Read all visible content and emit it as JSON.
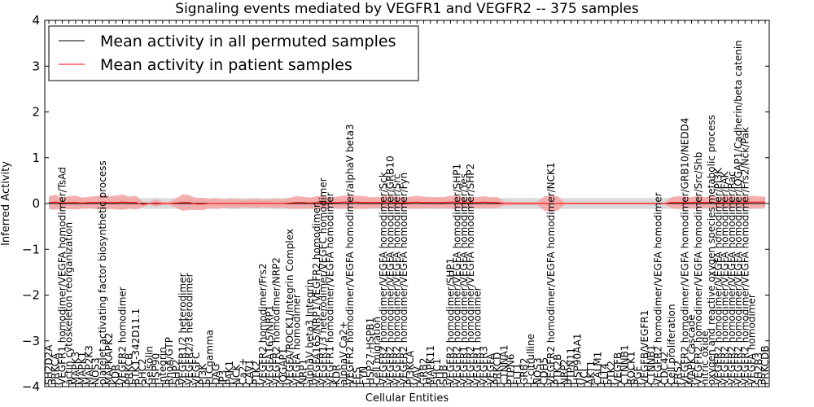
{
  "chart_data": {
    "type": "line",
    "title": "Signaling events mediated by VEGFR1 and VEGFR2 -- 375 samples",
    "xlabel": "Cellular Entities",
    "ylabel": "Inferred Activity",
    "ylim": [
      -4,
      4
    ],
    "yticks": [
      -4,
      -3,
      -2,
      -1,
      0,
      1,
      2,
      3,
      4
    ],
    "grid": false,
    "legend_position": "top-left",
    "categories": [
      "SH2D2A",
      "PRKCA",
      "VEGFR1 homodimer/VEGFA homodimer/TsAd",
      "actin cytoskeleton reorganization",
      "MAPK3",
      "MAPK1",
      "MAP2K3",
      "NOS3",
      "platelet activating factor biosynthetic process",
      "MAPKAPK2",
      "KDR",
      "VEGFR2 homodimer",
      "PRKCB",
      "BTK1-342D11.1",
      "SHC2",
      "Gelsolin",
      "HSP90",
      "Integrin",
      "RhoA/GTP",
      "SHP2",
      "VEGFR1/2 heterodimer",
      "VEGFR2/3 heterodimer",
      "VEGFC",
      "PI3K",
      "PLCgamma",
      "DAG",
      "IP3",
      "PAK1",
      "NCK",
      "Ca2+",
      "CAV1",
      "PTK2",
      "VEGFR2 homodimer/Frs2",
      "VEGFA165/NRP1",
      "VEGFR2 homodimer/NRP2",
      "IQGAP1",
      "VEGFA/ROCK1/Integrin Complex",
      "VEGFA homodimer",
      "NRP1",
      "alphaV beta3 Integrin",
      "VEGFA165/NRP1/VEGFR2 homodimer",
      "VEGFR1/3 heterodimer/VEGFC homodimer",
      "VEGFR1 homodimer/VEGFA homodimer",
      "KDR",
      "alphaV Ca2+",
      "VEGFR2 homodimer/VEGFA homodimer/alphaV beta3",
      "FES",
      "FYN",
      "HSP27-HSPB1",
      "Cell migration",
      "VEGFR2 homodimer/VEGFA homodimer/Sck",
      "VEGFR2 homodimer/VEGFA homodimer/GRB10",
      "VEGFR2 homodimer/VEGFA homodimer/Src",
      "VEGFR2 homodimer/VEGFA homodimer/Fyn",
      "PI3KCA",
      "VAV",
      "GRB2",
      "MAPK11",
      "SHC1",
      "SHB",
      "VEGFR2 homodimer/SHP1",
      "VEGFR2 homodimer/VEGFA homodimer/SHP1",
      "VEGFR1 homodimer/VEGFA homodimer/Yes",
      "VEGFR2 homodimer/VEGFA homodimer/SHP2",
      "VEGFR1 homodimer",
      "VEGFR3",
      "VEGFA",
      "PRKCD",
      "CTNNA1",
      "PTPN6",
      "FLT1",
      "GRB2",
      "L-citrulline",
      "NOS3",
      "CDH5",
      "VEGFR2 homodimer/VEGFA homodimer/NCK1",
      "PTK2B",
      "NRP2",
      "PTPN11",
      "HSP90AA1",
      "VCL",
      "AKT1",
      "CALM1",
      "FLT4",
      "PTK2",
      "VEGFB",
      "CTNNB1",
      "ROCK1",
      "PGF",
      "VEGFB/VEGFR1",
      "CTNNB1",
      "VEGFR2 homodimer/VEGFA homodimer",
      "CDC42",
      "Cell proliferation",
      "FRS2",
      "VEGFR2 homodimer/VEGFA homodimer/GRB10/NEDD4",
      "MAPK cascade",
      "VEGFR2 homodimer/VEGFA homodimer/Src/Shb",
      "nitric oxide",
      "oxygen and reactive oxygen species metabolic process",
      "VEGFR2 homodimer/VEGFA homodimer/PI3K",
      "VEGFR2 homodimer/VEGFA homodimer/FAK",
      "VEGFR2 homodimer/VEGFA homodimer/Rac",
      "VEGFR2 homodimer/VEGFA homodimer/IQGAP1/Cadherin/beta catenin",
      "VEGFR2 homodimer/VEGFA homodimer/Frs2/Nck/Pak",
      "VEGFA homodimer",
      "SH2B3",
      "PRKCDB"
    ],
    "series": [
      {
        "name": "Mean activity in all permuted samples",
        "color": "#000000",
        "values": [
          0,
          0,
          0,
          0,
          0,
          0,
          0,
          0,
          0,
          0,
          0,
          0,
          0,
          0,
          0,
          0,
          0,
          0,
          0,
          0,
          0,
          0,
          0,
          0,
          0,
          0,
          0,
          0,
          0,
          0,
          0,
          0,
          0,
          0,
          0,
          0,
          0,
          0,
          0,
          0,
          0,
          0,
          0,
          0,
          0,
          0,
          0,
          0,
          0,
          0,
          0,
          0,
          0,
          0,
          0,
          0,
          0,
          0,
          0,
          0,
          0,
          0,
          0,
          0,
          0,
          0,
          0,
          0,
          0,
          0,
          0,
          0,
          0,
          0,
          0,
          0,
          0,
          0,
          0,
          0,
          0,
          0,
          0,
          0,
          0,
          0,
          0,
          0,
          0,
          0,
          0,
          0,
          0,
          0,
          0,
          0,
          0,
          0,
          0,
          0,
          0,
          0,
          0,
          0,
          0,
          0,
          0,
          0
        ],
        "band_color": "#cccccc",
        "band_half_width": [
          0.12,
          0.14,
          0.12,
          0.13,
          0.12,
          0.12,
          0.11,
          0.12,
          0.13,
          0.12,
          0.12,
          0.13,
          0.12,
          0.12,
          0.11,
          0.12,
          0.12,
          0.12,
          0.11,
          0.12,
          0.13,
          0.12,
          0.12,
          0.12,
          0.12,
          0.12,
          0.11,
          0.12,
          0.12,
          0.12,
          0.12,
          0.12,
          0.12,
          0.12,
          0.12,
          0.12,
          0.12,
          0.12,
          0.12,
          0.12,
          0.13,
          0.12,
          0.12,
          0.12,
          0.12,
          0.12,
          0.12,
          0.12,
          0.12,
          0.12,
          0.12,
          0.12,
          0.12,
          0.12,
          0.12,
          0.12,
          0.12,
          0.12,
          0.13,
          0.12,
          0.12,
          0.12,
          0.12,
          0.12,
          0.12,
          0.12,
          0.12,
          0.12,
          0.12,
          0.12,
          0.12,
          0.12,
          0.12,
          0.12,
          0.12,
          0.12,
          0.12,
          0.12,
          0.12,
          0.12,
          0.12,
          0.12,
          0.12,
          0.12,
          0.12,
          0.12,
          0.12,
          0.12,
          0.12,
          0.12,
          0.12,
          0.12,
          0.12,
          0.12,
          0.12,
          0.12,
          0.12,
          0.12,
          0.12,
          0.12,
          0.12,
          0.12,
          0.12,
          0.12,
          0.12,
          0.12,
          0.12,
          0.12
        ]
      },
      {
        "name": "Mean activity in patient samples",
        "color": "#ff0000",
        "values": [
          0.02,
          0.03,
          0.01,
          0.02,
          0.02,
          0.01,
          0.02,
          0.02,
          0.03,
          0.02,
          0.02,
          0.03,
          0.02,
          0.02,
          -0.02,
          0.0,
          0.01,
          0.0,
          0.0,
          0.01,
          0.02,
          0.02,
          -0.01,
          -0.01,
          0.0,
          0.0,
          0.0,
          0.0,
          0.0,
          0.0,
          0.0,
          0.0,
          0.0,
          0.0,
          0.0,
          0.0,
          0.01,
          0.02,
          0.02,
          0.01,
          0.02,
          0.02,
          0.02,
          0.02,
          0.03,
          0.03,
          0.03,
          0.02,
          0.02,
          0.02,
          0.03,
          0.03,
          0.02,
          0.02,
          0.02,
          0.03,
          0.02,
          0.02,
          0.02,
          0.02,
          0.03,
          0.03,
          0.02,
          0.02,
          0.02,
          0.03,
          0.02,
          0.02,
          0.0,
          0.0,
          0.0,
          0.0,
          0.0,
          0.0,
          0.0,
          0.0,
          0.0,
          0.0,
          0.0,
          0.0,
          0.0,
          0.0,
          0.0,
          0.0,
          0.0,
          0.0,
          0.0,
          0.0,
          0.0,
          0.0,
          0.0,
          0.0,
          0.0,
          0.02,
          0.02,
          0.02,
          0.02,
          0.03,
          0.02,
          0.03,
          0.02,
          0.03,
          0.03,
          0.03,
          0.03,
          0.03,
          0.03,
          0.03
        ],
        "band_color": "#f4a3a3",
        "band_half_width": [
          0.14,
          0.16,
          0.12,
          0.14,
          0.15,
          0.12,
          0.13,
          0.14,
          0.16,
          0.14,
          0.15,
          0.17,
          0.13,
          0.15,
          0.06,
          0.02,
          0.08,
          0.03,
          0.03,
          0.1,
          0.18,
          0.16,
          0.13,
          0.14,
          0.1,
          0.12,
          0.09,
          0.1,
          0.1,
          0.08,
          0.09,
          0.1,
          0.08,
          0.09,
          0.1,
          0.09,
          0.12,
          0.14,
          0.13,
          0.12,
          0.14,
          0.14,
          0.12,
          0.13,
          0.14,
          0.15,
          0.14,
          0.14,
          0.12,
          0.12,
          0.13,
          0.15,
          0.13,
          0.12,
          0.13,
          0.14,
          0.13,
          0.12,
          0.12,
          0.12,
          0.14,
          0.14,
          0.12,
          0.12,
          0.12,
          0.13,
          0.12,
          0.12,
          0.04,
          0.04,
          0.03,
          0.03,
          0.03,
          0.03,
          0.16,
          0.18,
          0.16,
          0.02,
          0.02,
          0.02,
          0.02,
          0.02,
          0.02,
          0.02,
          0.02,
          0.02,
          0.02,
          0.02,
          0.02,
          0.02,
          0.02,
          0.02,
          0.02,
          0.12,
          0.14,
          0.13,
          0.12,
          0.14,
          0.12,
          0.14,
          0.12,
          0.14,
          0.13,
          0.12,
          0.13,
          0.14,
          0.13,
          0.12
        ]
      }
    ]
  }
}
